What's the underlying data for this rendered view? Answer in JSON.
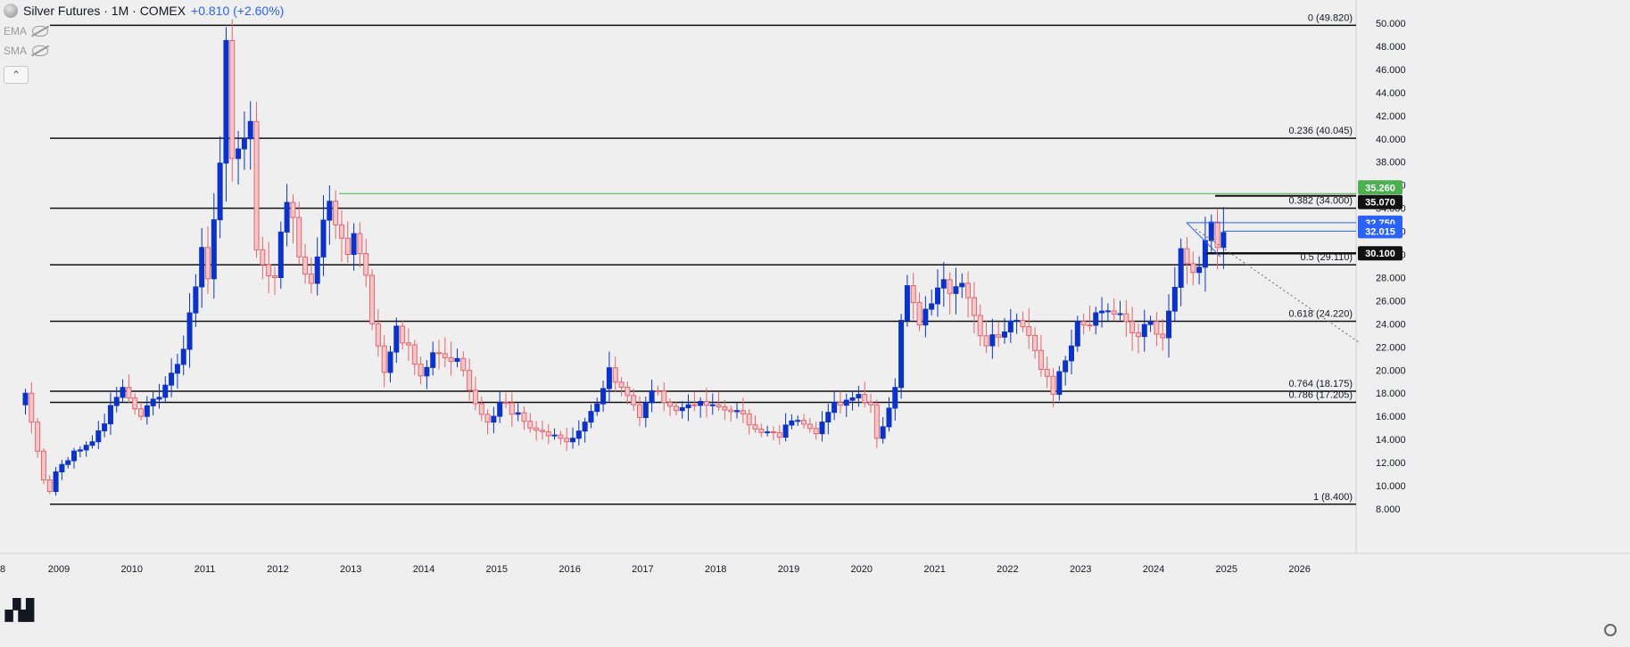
{
  "header": {
    "symbol": "Silver Futures · 1M · COMEX",
    "change": "+0.810 (+2.60%)"
  },
  "indicators": [
    {
      "label": "EMA",
      "icon": "eye-hidden-icon"
    },
    {
      "label": "SMA",
      "icon": "eye-hidden-icon"
    }
  ],
  "colors": {
    "background": "#efefef",
    "bull": "#0b33c9",
    "bear": "#e8636b",
    "fib_line": "#111111",
    "accent": "#2962ff",
    "green_label": "#4caf50"
  },
  "chart_data": {
    "type": "candlestick",
    "title": "",
    "xlabel": "",
    "ylabel": "",
    "ylim": [
      8.0,
      52.0
    ],
    "y_ticks": [
      "8.000",
      "10.000",
      "12.000",
      "14.000",
      "16.000",
      "18.000",
      "20.000",
      "22.000",
      "24.000",
      "26.000",
      "28.000",
      "30.000",
      "32.000",
      "34.000",
      "36.000",
      "38.000",
      "40.000",
      "42.000",
      "44.000",
      "46.000",
      "48.000",
      "50.000"
    ],
    "x_ticks": [
      "2009",
      "2010",
      "2011",
      "2012",
      "2013",
      "2014",
      "2015",
      "2016",
      "2017",
      "2018",
      "2019",
      "2020",
      "2021",
      "2022",
      "2023",
      "2024",
      "2025",
      "2026"
    ],
    "x_first_tick": "8",
    "fib_levels": [
      {
        "value": 49.82,
        "label": "0 (49.820)"
      },
      {
        "value": 40.045,
        "label": "0.236 (40.045)"
      },
      {
        "value": 34.0,
        "label": "0.382 (34.000)"
      },
      {
        "value": 29.11,
        "label": "0.5 (29.110)"
      },
      {
        "value": 24.22,
        "label": "0.618 (24.220)"
      },
      {
        "value": 18.175,
        "label": "0.764 (18.175)"
      },
      {
        "value": 17.205,
        "label": "0.786 (17.205)"
      },
      {
        "value": 8.4,
        "label": "1 (8.400)"
      }
    ],
    "price_labels": [
      {
        "value": 35.26,
        "label": "35.260",
        "color": "#4caf50"
      },
      {
        "value": 35.07,
        "label": "35.070",
        "color": "#111111"
      },
      {
        "value": 32.75,
        "label": "32.750",
        "color": "#2962ff"
      },
      {
        "value": 32.015,
        "label": "32.015",
        "color": "#2962ff"
      },
      {
        "value": 30.1,
        "label": "30.100",
        "color": "#111111"
      }
    ],
    "candles_monthly": {
      "start": "2008-07",
      "anchors": [
        [
          "2008-07",
          18.0
        ],
        [
          "2008-08",
          15.5
        ],
        [
          "2008-10",
          10.5
        ],
        [
          "2008-11",
          9.5
        ],
        [
          "2008-12",
          11.2
        ],
        [
          "2009-03",
          13.0
        ],
        [
          "2009-06",
          13.8
        ],
        [
          "2009-11",
          18.5
        ],
        [
          "2010-02",
          16.0
        ],
        [
          "2010-06",
          18.7
        ],
        [
          "2010-09",
          21.8
        ],
        [
          "2010-12",
          30.6
        ],
        [
          "2011-01",
          27.9
        ],
        [
          "2011-03",
          37.9
        ],
        [
          "2011-04",
          48.5
        ],
        [
          "2011-05",
          38.3
        ],
        [
          "2011-07",
          40.0
        ],
        [
          "2011-08",
          41.5
        ],
        [
          "2011-09",
          30.4
        ],
        [
          "2011-12",
          28.0
        ],
        [
          "2012-02",
          34.5
        ],
        [
          "2012-05",
          28.3
        ],
        [
          "2012-06",
          27.5
        ],
        [
          "2012-09",
          34.6
        ],
        [
          "2012-12",
          30.0
        ],
        [
          "2013-01",
          31.8
        ],
        [
          "2013-03",
          28.2
        ],
        [
          "2013-04",
          24.0
        ],
        [
          "2013-06",
          19.8
        ],
        [
          "2013-08",
          23.8
        ],
        [
          "2013-12",
          19.5
        ],
        [
          "2014-02",
          21.5
        ],
        [
          "2014-06",
          21.0
        ],
        [
          "2014-09",
          17.1
        ],
        [
          "2014-11",
          15.5
        ],
        [
          "2015-01",
          17.2
        ],
        [
          "2015-07",
          14.8
        ],
        [
          "2015-12",
          13.8
        ],
        [
          "2016-03",
          15.5
        ],
        [
          "2016-06",
          18.4
        ],
        [
          "2016-07",
          20.2
        ],
        [
          "2016-10",
          17.8
        ],
        [
          "2016-12",
          15.9
        ],
        [
          "2017-02",
          18.2
        ],
        [
          "2017-06",
          16.5
        ],
        [
          "2017-08",
          17.0
        ],
        [
          "2017-12",
          17.0
        ],
        [
          "2018-04",
          16.5
        ],
        [
          "2018-08",
          14.6
        ],
        [
          "2018-11",
          14.2
        ],
        [
          "2019-01",
          15.6
        ],
        [
          "2019-05",
          14.5
        ],
        [
          "2019-08",
          17.2
        ],
        [
          "2019-12",
          17.9
        ],
        [
          "2020-02",
          17.0
        ],
        [
          "2020-03",
          14.1
        ],
        [
          "2020-04",
          15.1
        ],
        [
          "2020-06",
          18.5
        ],
        [
          "2020-07",
          24.3
        ],
        [
          "2020-08",
          27.3
        ],
        [
          "2020-10",
          23.9
        ],
        [
          "2021-01",
          27.1
        ],
        [
          "2021-05",
          27.5
        ],
        [
          "2021-09",
          22.1
        ],
        [
          "2021-12",
          23.3
        ],
        [
          "2022-02",
          24.3
        ],
        [
          "2022-04",
          23.0
        ],
        [
          "2022-08",
          17.9
        ],
        [
          "2022-12",
          24.2
        ],
        [
          "2023-01",
          23.9
        ],
        [
          "2023-04",
          25.1
        ],
        [
          "2023-08",
          24.2
        ],
        [
          "2023-10",
          22.9
        ],
        [
          "2023-12",
          24.2
        ],
        [
          "2024-02",
          22.8
        ],
        [
          "2024-03",
          25.1
        ],
        [
          "2024-05",
          30.5
        ],
        [
          "2024-06",
          29.2
        ],
        [
          "2024-08",
          28.9
        ],
        [
          "2024-09",
          31.2
        ],
        [
          "2024-10",
          32.8
        ],
        [
          "2024-11",
          30.6
        ],
        [
          "2024-12",
          31.9
        ]
      ]
    }
  }
}
